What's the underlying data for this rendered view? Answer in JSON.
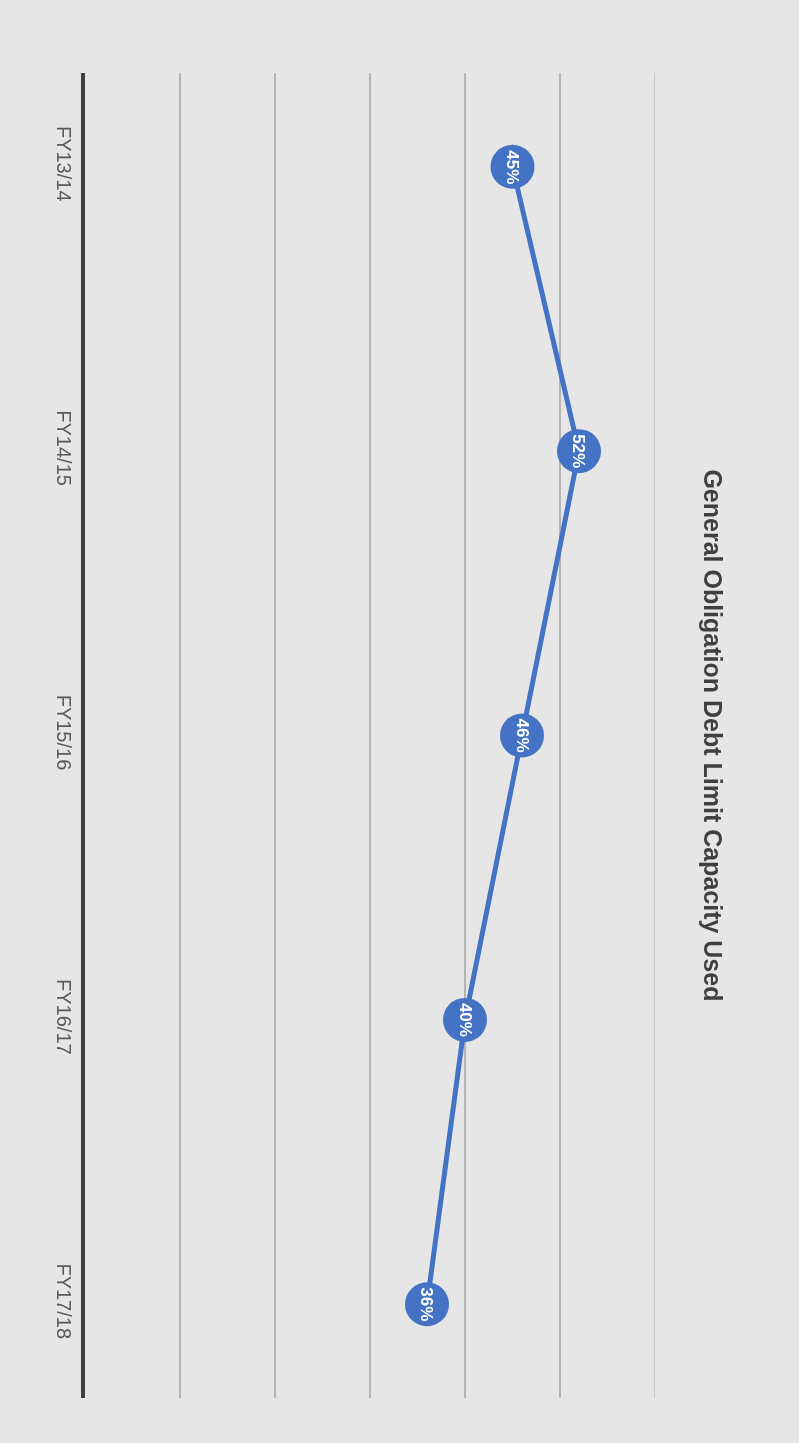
{
  "chart_data": {
    "type": "line",
    "title": "General Obligation Debt Limit Capacity Used",
    "orientation": "horizontal",
    "categories": [
      "FY13/14",
      "FY14/15",
      "FY15/16",
      "FY16/17",
      "FY17/18"
    ],
    "series": [
      {
        "color": "#4472c4",
        "values": [
          45,
          52,
          46,
          40,
          36
        ],
        "value_labels": [
          "45%",
          "52%",
          "46%",
          "40%",
          "36%"
        ]
      }
    ],
    "xlim": [
      0,
      60
    ],
    "xticks": [
      {
        "value": 0,
        "label": null
      },
      {
        "value": 10,
        "label": null
      },
      {
        "value": 20,
        "label": null
      },
      {
        "value": 30,
        "label": null
      },
      {
        "value": 40,
        "label": null
      },
      {
        "value": 50,
        "label": null
      },
      {
        "value": 60,
        "label": null
      }
    ],
    "tick_labels": "y",
    "grid": "x",
    "marker": "circle",
    "line_style": "solid"
  }
}
